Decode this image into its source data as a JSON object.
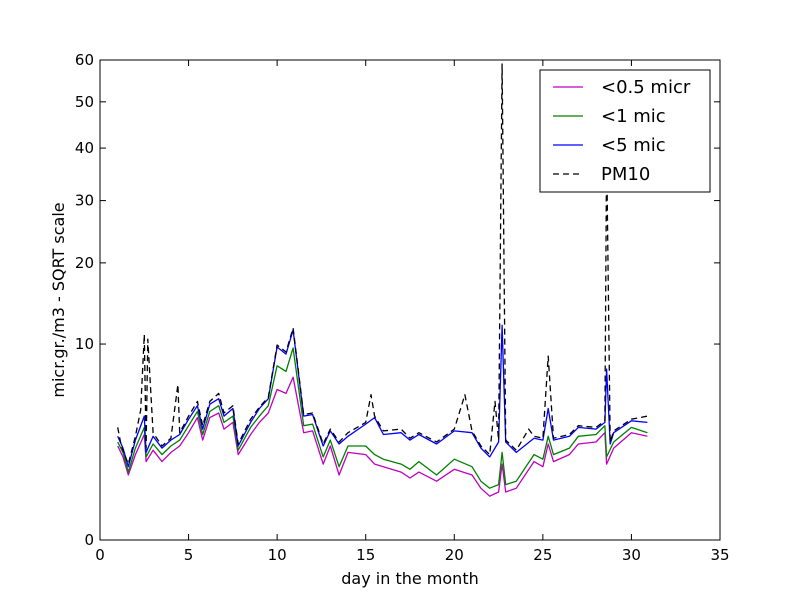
{
  "chart_data": {
    "type": "line",
    "title": "",
    "xlabel": "day in the month",
    "ylabel": "micr.gr./m3 - SQRT scale",
    "xlim": [
      0,
      35
    ],
    "ylim": [
      0,
      60
    ],
    "yscale": "sqrt",
    "xticks": [
      0,
      5,
      10,
      15,
      20,
      25,
      30,
      35
    ],
    "yticks": [
      0,
      10,
      20,
      30,
      40,
      50,
      60
    ],
    "grid": false,
    "legend_position": "top-right",
    "series": [
      {
        "name": "<0.5 micr",
        "color": "#bf00bf",
        "style": "solid",
        "points": [
          [
            1.0,
            2.3
          ],
          [
            1.3,
            1.8
          ],
          [
            1.6,
            1.1
          ],
          [
            2.0,
            1.9
          ],
          [
            2.5,
            2.9
          ],
          [
            2.6,
            1.6
          ],
          [
            3.0,
            2.1
          ],
          [
            3.5,
            1.6
          ],
          [
            4.0,
            2.0
          ],
          [
            4.5,
            2.3
          ],
          [
            5.0,
            3.0
          ],
          [
            5.5,
            3.9
          ],
          [
            5.8,
            2.6
          ],
          [
            6.2,
            3.9
          ],
          [
            6.7,
            4.2
          ],
          [
            7.0,
            3.2
          ],
          [
            7.5,
            3.6
          ],
          [
            7.8,
            1.9
          ],
          [
            8.5,
            2.9
          ],
          [
            9.0,
            3.6
          ],
          [
            9.5,
            4.2
          ],
          [
            10.0,
            5.9
          ],
          [
            10.5,
            5.6
          ],
          [
            10.9,
            6.9
          ],
          [
            11.5,
            3.0
          ],
          [
            12.0,
            3.1
          ],
          [
            12.6,
            1.5
          ],
          [
            13.0,
            2.3
          ],
          [
            13.5,
            1.1
          ],
          [
            14.0,
            2.0
          ],
          [
            15.0,
            1.9
          ],
          [
            15.5,
            1.5
          ],
          [
            16.0,
            1.4
          ],
          [
            17.0,
            1.2
          ],
          [
            17.5,
            1.0
          ],
          [
            18.0,
            1.2
          ],
          [
            19.0,
            0.9
          ],
          [
            20.0,
            1.3
          ],
          [
            21.0,
            1.1
          ],
          [
            21.5,
            0.7
          ],
          [
            22.0,
            0.5
          ],
          [
            22.5,
            0.6
          ],
          [
            22.7,
            1.5
          ],
          [
            22.9,
            0.6
          ],
          [
            23.5,
            0.7
          ],
          [
            24.5,
            1.6
          ],
          [
            25.0,
            1.4
          ],
          [
            25.3,
            2.4
          ],
          [
            25.6,
            1.6
          ],
          [
            26.5,
            1.9
          ],
          [
            27.0,
            2.4
          ],
          [
            28.0,
            2.5
          ],
          [
            28.5,
            3.0
          ],
          [
            28.6,
            1.5
          ],
          [
            29.0,
            2.2
          ],
          [
            30.0,
            3.0
          ],
          [
            30.9,
            2.8
          ]
        ]
      },
      {
        "name": "<1 mic",
        "color": "#008000",
        "style": "solid",
        "points": [
          [
            1.0,
            2.5
          ],
          [
            1.3,
            2.0
          ],
          [
            1.6,
            1.2
          ],
          [
            2.0,
            2.2
          ],
          [
            2.5,
            3.3
          ],
          [
            2.6,
            1.8
          ],
          [
            3.0,
            2.4
          ],
          [
            3.5,
            1.9
          ],
          [
            4.0,
            2.3
          ],
          [
            4.5,
            2.6
          ],
          [
            5.0,
            3.4
          ],
          [
            5.5,
            4.3
          ],
          [
            5.8,
            2.9
          ],
          [
            6.2,
            4.3
          ],
          [
            6.7,
            4.7
          ],
          [
            7.0,
            3.6
          ],
          [
            7.5,
            4.0
          ],
          [
            7.8,
            2.1
          ],
          [
            8.5,
            3.3
          ],
          [
            9.0,
            4.0
          ],
          [
            9.5,
            4.7
          ],
          [
            10.0,
            7.9
          ],
          [
            10.5,
            7.4
          ],
          [
            10.9,
            9.6
          ],
          [
            11.5,
            3.4
          ],
          [
            12.0,
            3.5
          ],
          [
            12.6,
            1.8
          ],
          [
            13.0,
            2.6
          ],
          [
            13.5,
            1.4
          ],
          [
            14.0,
            2.3
          ],
          [
            15.0,
            2.3
          ],
          [
            15.5,
            1.9
          ],
          [
            16.0,
            1.7
          ],
          [
            17.0,
            1.5
          ],
          [
            17.5,
            1.3
          ],
          [
            18.0,
            1.6
          ],
          [
            19.0,
            1.1
          ],
          [
            20.0,
            1.7
          ],
          [
            21.0,
            1.4
          ],
          [
            21.5,
            0.9
          ],
          [
            22.0,
            0.7
          ],
          [
            22.5,
            0.8
          ],
          [
            22.7,
            2.0
          ],
          [
            22.9,
            0.8
          ],
          [
            23.5,
            0.9
          ],
          [
            24.5,
            1.9
          ],
          [
            25.0,
            1.7
          ],
          [
            25.3,
            2.8
          ],
          [
            25.6,
            1.9
          ],
          [
            26.5,
            2.2
          ],
          [
            27.0,
            2.8
          ],
          [
            28.0,
            2.9
          ],
          [
            28.5,
            3.4
          ],
          [
            28.6,
            1.8
          ],
          [
            29.0,
            2.5
          ],
          [
            30.0,
            3.3
          ],
          [
            30.9,
            3.0
          ]
        ]
      },
      {
        "name": "<5 mic",
        "color": "#0000ff",
        "style": "solid",
        "points": [
          [
            1.0,
            2.8
          ],
          [
            1.3,
            2.2
          ],
          [
            1.6,
            1.4
          ],
          [
            2.0,
            2.6
          ],
          [
            2.5,
            4.0
          ],
          [
            2.6,
            2.0
          ],
          [
            3.0,
            2.8
          ],
          [
            3.5,
            2.2
          ],
          [
            4.0,
            2.6
          ],
          [
            4.5,
            2.9
          ],
          [
            5.0,
            3.8
          ],
          [
            5.5,
            4.7
          ],
          [
            5.8,
            3.2
          ],
          [
            6.2,
            4.8
          ],
          [
            6.7,
            5.2
          ],
          [
            7.0,
            4.0
          ],
          [
            7.5,
            4.5
          ],
          [
            7.8,
            2.3
          ],
          [
            8.5,
            3.6
          ],
          [
            9.0,
            4.5
          ],
          [
            9.5,
            5.2
          ],
          [
            10.0,
            9.7
          ],
          [
            10.5,
            9.0
          ],
          [
            10.9,
            11.5
          ],
          [
            11.5,
            4.0
          ],
          [
            12.0,
            4.1
          ],
          [
            12.6,
            2.3
          ],
          [
            13.0,
            3.1
          ],
          [
            13.5,
            2.4
          ],
          [
            14.0,
            2.8
          ],
          [
            15.0,
            3.5
          ],
          [
            15.5,
            3.9
          ],
          [
            16.0,
            2.9
          ],
          [
            17.0,
            3.0
          ],
          [
            17.5,
            2.6
          ],
          [
            18.0,
            2.9
          ],
          [
            19.0,
            2.4
          ],
          [
            20.0,
            3.1
          ],
          [
            21.0,
            3.0
          ],
          [
            21.5,
            2.2
          ],
          [
            22.0,
            1.8
          ],
          [
            22.5,
            2.5
          ],
          [
            22.7,
            12.0
          ],
          [
            22.9,
            2.5
          ],
          [
            23.5,
            2.0
          ],
          [
            24.5,
            2.7
          ],
          [
            25.0,
            2.6
          ],
          [
            25.3,
            4.5
          ],
          [
            25.6,
            2.6
          ],
          [
            26.5,
            2.8
          ],
          [
            27.0,
            3.3
          ],
          [
            28.0,
            3.2
          ],
          [
            28.5,
            3.6
          ],
          [
            28.6,
            7.6
          ],
          [
            28.8,
            2.4
          ],
          [
            29.0,
            3.0
          ],
          [
            30.0,
            3.7
          ],
          [
            30.9,
            3.6
          ]
        ]
      },
      {
        "name": "PM10",
        "color": "#000000",
        "style": "dashed",
        "points": [
          [
            1.0,
            3.3
          ],
          [
            1.2,
            2.3
          ],
          [
            1.6,
            1.5
          ],
          [
            2.0,
            2.8
          ],
          [
            2.3,
            4.4
          ],
          [
            2.5,
            11.0
          ],
          [
            2.6,
            2.2
          ],
          [
            2.7,
            10.5
          ],
          [
            3.0,
            3.0
          ],
          [
            3.5,
            2.3
          ],
          [
            4.0,
            2.7
          ],
          [
            4.4,
            6.3
          ],
          [
            4.5,
            3.0
          ],
          [
            5.0,
            4.0
          ],
          [
            5.5,
            5.0
          ],
          [
            5.8,
            3.4
          ],
          [
            6.2,
            5.0
          ],
          [
            6.7,
            5.6
          ],
          [
            7.0,
            4.2
          ],
          [
            7.5,
            4.7
          ],
          [
            7.8,
            2.4
          ],
          [
            8.5,
            3.8
          ],
          [
            9.0,
            4.6
          ],
          [
            9.5,
            5.3
          ],
          [
            10.0,
            9.9
          ],
          [
            10.5,
            9.2
          ],
          [
            10.9,
            11.7
          ],
          [
            11.5,
            4.1
          ],
          [
            12.0,
            4.2
          ],
          [
            12.6,
            2.4
          ],
          [
            13.0,
            3.2
          ],
          [
            13.5,
            2.5
          ],
          [
            14.0,
            3.0
          ],
          [
            15.0,
            3.6
          ],
          [
            15.3,
            5.5
          ],
          [
            15.5,
            4.0
          ],
          [
            16.0,
            3.1
          ],
          [
            17.0,
            3.2
          ],
          [
            17.5,
            2.7
          ],
          [
            18.0,
            3.0
          ],
          [
            19.0,
            2.5
          ],
          [
            20.0,
            3.2
          ],
          [
            20.6,
            5.5
          ],
          [
            21.0,
            3.1
          ],
          [
            21.5,
            2.3
          ],
          [
            22.0,
            1.9
          ],
          [
            22.3,
            5.0
          ],
          [
            22.5,
            2.6
          ],
          [
            22.7,
            59.0
          ],
          [
            22.9,
            2.6
          ],
          [
            23.5,
            2.1
          ],
          [
            24.2,
            3.2
          ],
          [
            24.5,
            2.8
          ],
          [
            25.0,
            2.7
          ],
          [
            25.3,
            8.8
          ],
          [
            25.6,
            2.7
          ],
          [
            26.5,
            2.9
          ],
          [
            27.0,
            3.4
          ],
          [
            28.0,
            3.3
          ],
          [
            28.5,
            3.7
          ],
          [
            28.6,
            40.0
          ],
          [
            28.8,
            2.5
          ],
          [
            29.0,
            3.1
          ],
          [
            30.0,
            3.8
          ],
          [
            30.9,
            4.0
          ]
        ]
      }
    ]
  }
}
